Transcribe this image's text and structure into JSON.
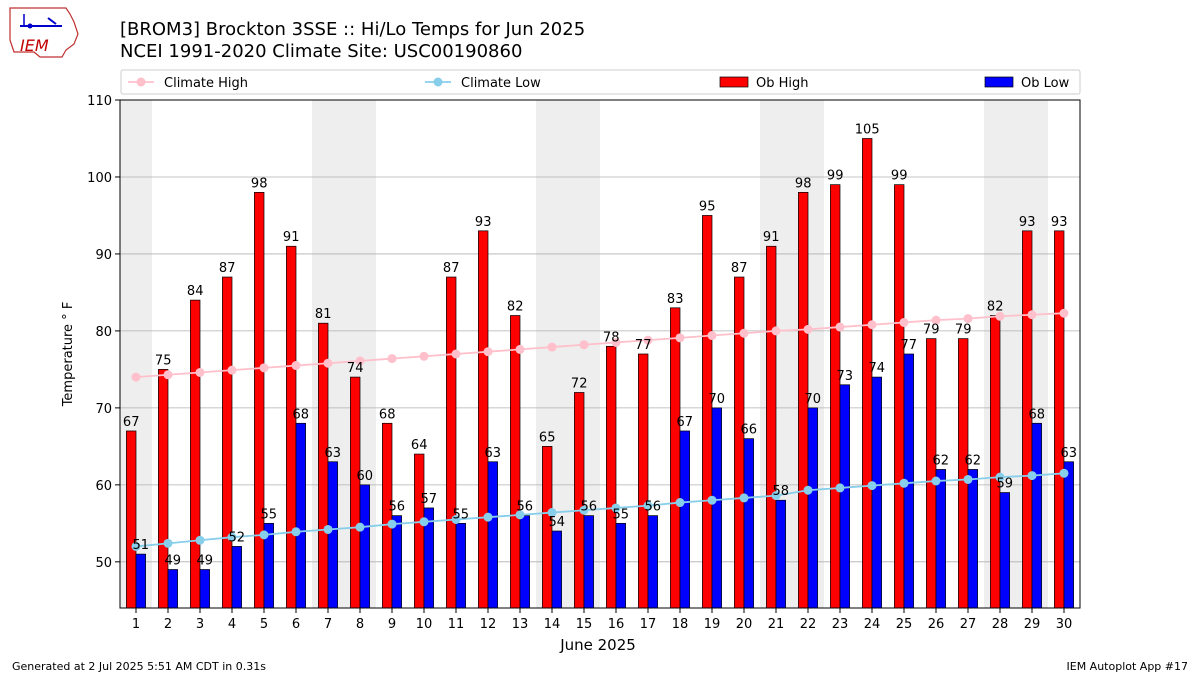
{
  "title_line1": "[BROM3] Brockton 3SSE :: Hi/Lo Temps for Jun 2025",
  "title_line2": "NCEI 1991-2020 Climate Site: USC00190860",
  "footer_left": "Generated at 2 Jul 2025 5:51 AM CDT in 0.31s",
  "footer_right": "IEM Autoplot App #17",
  "logo_text": "IEM",
  "colors": {
    "ob_high": "#ff0000",
    "ob_low": "#0000ff",
    "climate_high": "#ffc0cb",
    "climate_low": "#87ceeb",
    "weekend_band": "#eeeeee",
    "grid": "#b0b0b0"
  },
  "legend": [
    {
      "label": "Climate High",
      "kind": "line-marker",
      "color": "#ffc0cb"
    },
    {
      "label": "Climate Low",
      "kind": "line-marker",
      "color": "#87ceeb"
    },
    {
      "label": "Ob High",
      "kind": "bar",
      "color": "#ff0000"
    },
    {
      "label": "Ob Low",
      "kind": "bar",
      "color": "#0000ff"
    }
  ],
  "chart_data": {
    "type": "bar",
    "xlabel": "June 2025",
    "ylabel": "Temperature ° F",
    "ylim": [
      44,
      110
    ],
    "yticks": [
      50,
      60,
      70,
      80,
      90,
      100,
      110
    ],
    "grid": true,
    "legend_position": "top",
    "categories": [
      1,
      2,
      3,
      4,
      5,
      6,
      7,
      8,
      9,
      10,
      11,
      12,
      13,
      14,
      15,
      16,
      17,
      18,
      19,
      20,
      21,
      22,
      23,
      24,
      25,
      26,
      27,
      28,
      29,
      30
    ],
    "weekend_days": [
      1,
      7,
      8,
      14,
      15,
      21,
      22,
      28,
      29
    ],
    "series": [
      {
        "name": "Ob High",
        "kind": "bar",
        "values": [
          67,
          75,
          84,
          87,
          98,
          91,
          81,
          74,
          68,
          64,
          87,
          93,
          82,
          65,
          72,
          78,
          77,
          83,
          95,
          87,
          91,
          98,
          99,
          105,
          99,
          79,
          79,
          82,
          93,
          93
        ]
      },
      {
        "name": "Ob Low",
        "kind": "bar",
        "values": [
          51,
          49,
          49,
          52,
          55,
          68,
          63,
          60,
          56,
          57,
          55,
          63,
          56,
          54,
          56,
          55,
          56,
          67,
          70,
          66,
          58,
          70,
          73,
          74,
          77,
          62,
          62,
          59,
          68,
          63
        ]
      },
      {
        "name": "Climate High",
        "kind": "line",
        "values": [
          74.0,
          74.3,
          74.6,
          74.9,
          75.2,
          75.5,
          75.8,
          76.1,
          76.4,
          76.7,
          77.0,
          77.3,
          77.6,
          77.9,
          78.2,
          78.5,
          78.8,
          79.1,
          79.4,
          79.7,
          80.0,
          80.2,
          80.5,
          80.8,
          81.1,
          81.4,
          81.6,
          81.9,
          82.1,
          82.3
        ]
      },
      {
        "name": "Climate Low",
        "kind": "line",
        "values": [
          52.0,
          52.4,
          52.8,
          53.2,
          53.5,
          53.9,
          54.2,
          54.5,
          54.9,
          55.2,
          55.5,
          55.8,
          56.1,
          56.4,
          56.7,
          57.0,
          57.3,
          57.7,
          58.0,
          58.3,
          58.6,
          59.3,
          59.6,
          59.9,
          60.2,
          60.5,
          60.7,
          61.0,
          61.2,
          61.5
        ]
      }
    ]
  }
}
